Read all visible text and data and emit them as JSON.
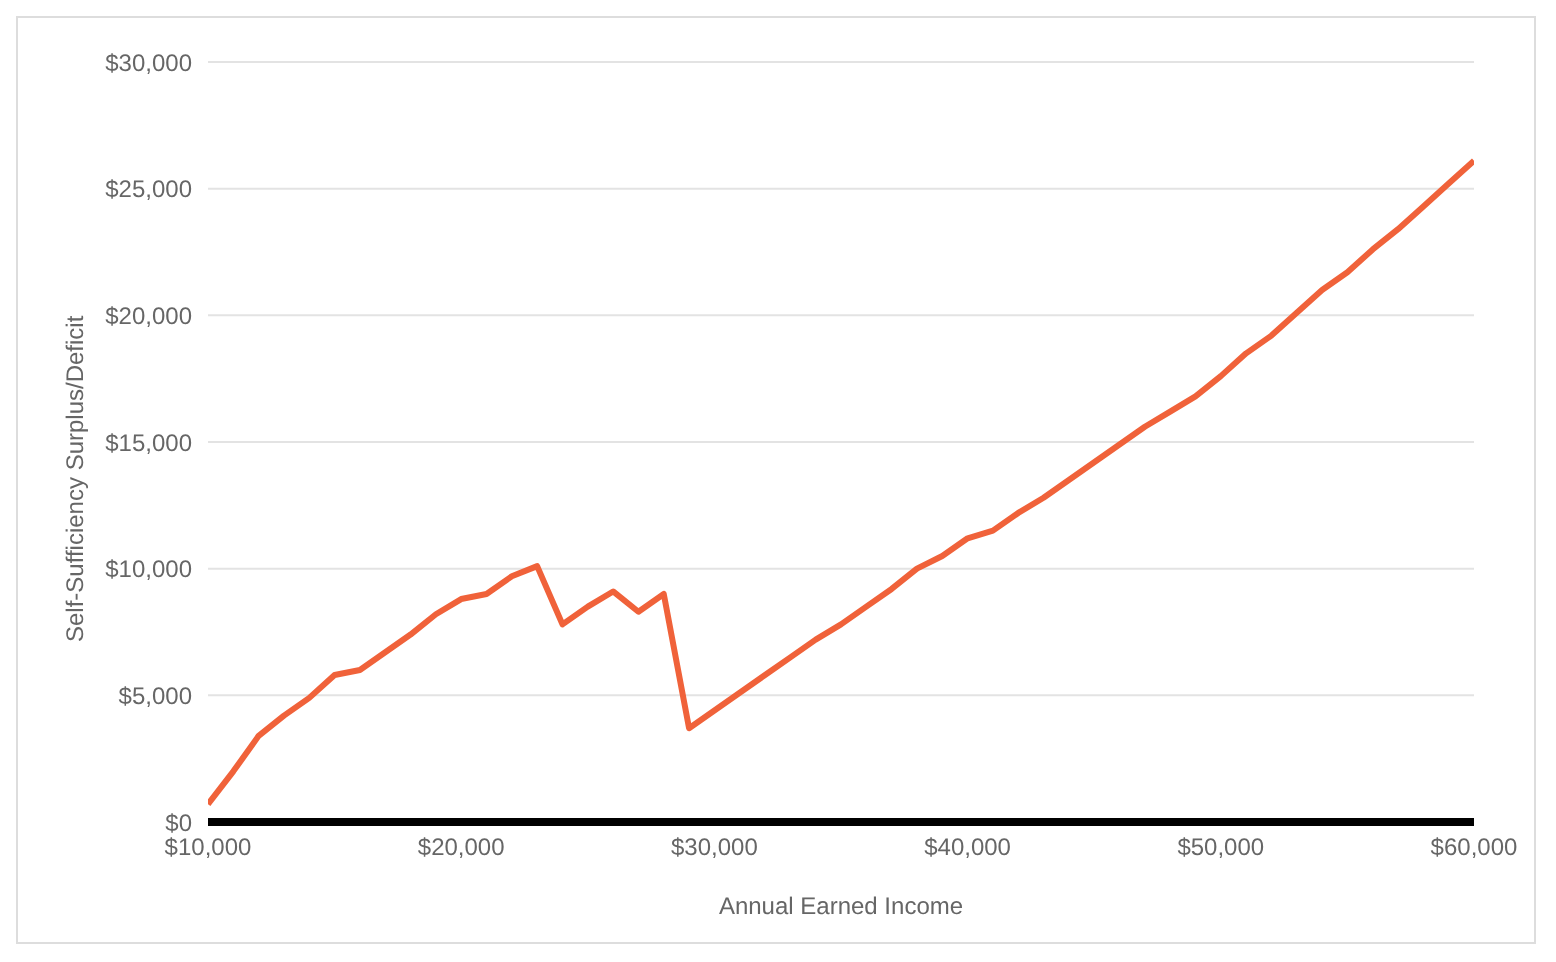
{
  "chart_data": {
    "type": "line",
    "xlabel": "Annual Earned Income",
    "ylabel": "Self-Sufficiency Surplus/Deficit",
    "x": [
      10000,
      11000,
      12000,
      13000,
      14000,
      15000,
      16000,
      17000,
      18000,
      19000,
      20000,
      21000,
      22000,
      23000,
      24000,
      25000,
      26000,
      27000,
      28000,
      29000,
      30000,
      31000,
      32000,
      33000,
      34000,
      35000,
      36000,
      37000,
      38000,
      39000,
      40000,
      41000,
      42000,
      43000,
      44000,
      45000,
      46000,
      47000,
      48000,
      49000,
      50000,
      51000,
      52000,
      53000,
      54000,
      55000,
      56000,
      57000,
      58000,
      59000,
      60000
    ],
    "series": [
      {
        "color": "#f0623a",
        "values": [
          700,
          2000,
          3400,
          4200,
          4900,
          5800,
          6000,
          6700,
          7400,
          8200,
          8800,
          9000,
          9700,
          10100,
          7800,
          8500,
          9100,
          8300,
          9000,
          3700,
          4400,
          5100,
          5800,
          6500,
          7200,
          7800,
          8500,
          9200,
          10000,
          10500,
          11200,
          11500,
          12200,
          12800,
          13500,
          14200,
          14900,
          15600,
          16200,
          16800,
          17600,
          18500,
          19200,
          20100,
          21000,
          21700,
          22600,
          23400,
          24300,
          25200,
          26100
        ]
      }
    ],
    "xlim": [
      10000,
      60000
    ],
    "xticks": [
      {
        "value": 10000,
        "label": "$10,000"
      },
      {
        "value": 20000,
        "label": "$20,000"
      },
      {
        "value": 30000,
        "label": "$30,000"
      },
      {
        "value": 40000,
        "label": "$40,000"
      },
      {
        "value": 50000,
        "label": "$50,000"
      },
      {
        "value": 60000,
        "label": "$60,000"
      }
    ],
    "ylim": [
      0,
      30000
    ],
    "yticks": [
      {
        "value": 0,
        "label": "$0"
      },
      {
        "value": 5000,
        "label": "$5,000"
      },
      {
        "value": 10000,
        "label": "$10,000"
      },
      {
        "value": 15000,
        "label": "$15,000"
      },
      {
        "value": 20000,
        "label": "$20,000"
      },
      {
        "value": 25000,
        "label": "$25,000"
      },
      {
        "value": 30000,
        "label": "$30,000"
      }
    ],
    "grid": "y",
    "legend": false,
    "marker": "none",
    "line_style": "solid"
  }
}
